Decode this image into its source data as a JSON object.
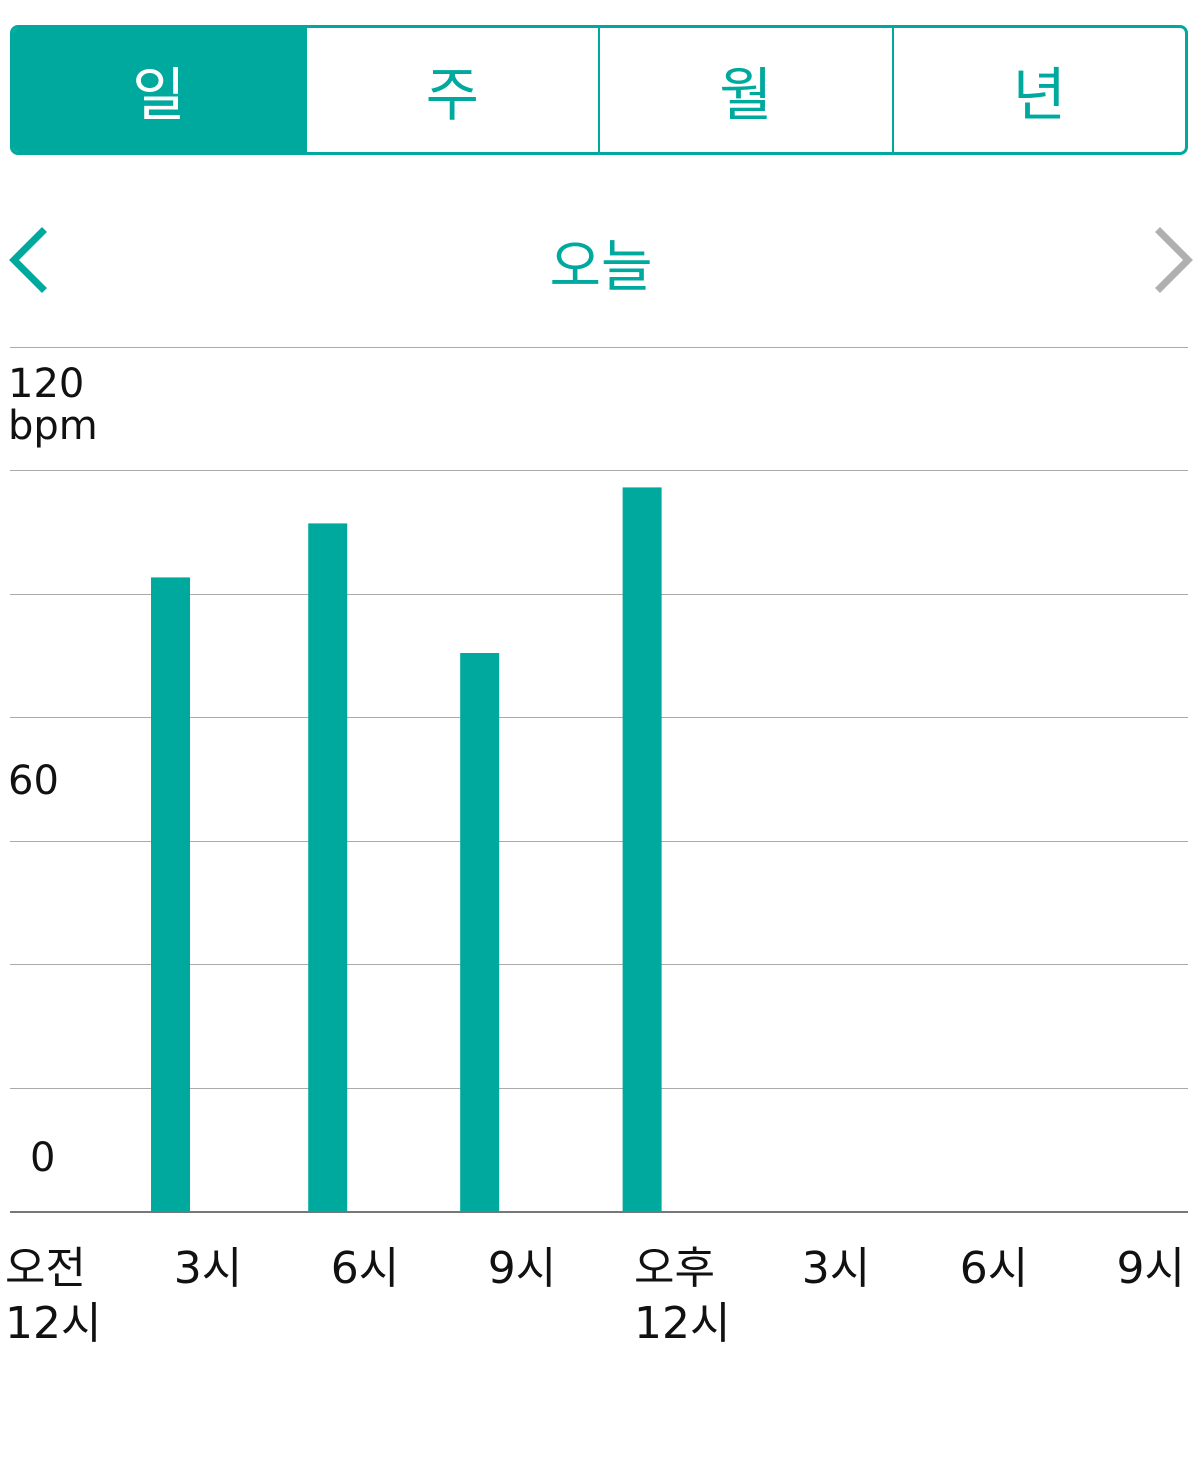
{
  "tabs": [
    {
      "label": "일",
      "active": true
    },
    {
      "label": "주",
      "active": false
    },
    {
      "label": "월",
      "active": false
    },
    {
      "label": "년",
      "active": false
    }
  ],
  "nav": {
    "title": "오늘",
    "prev_icon": "chevron-left-icon",
    "next_icon": "chevron-right-icon",
    "prev_enabled": true,
    "next_enabled": false
  },
  "colors": {
    "accent": "#00a99d",
    "grid": "#aaaaaa",
    "axis": "#777777",
    "disabled": "#b0b0b0"
  },
  "chart_data": {
    "type": "bar",
    "unit_label": "bpm",
    "ylim": [
      0,
      120
    ],
    "y_ticks": [
      "120",
      "60",
      "0"
    ],
    "grid_values": [
      0,
      17.14,
      34.29,
      51.43,
      68.57,
      85.71,
      102.86,
      120
    ],
    "categories": [
      "오전 12시",
      "3시",
      "6시",
      "9시",
      "오후 12시",
      "3시",
      "6시",
      "9시"
    ],
    "x_tick_labels": [
      [
        "오전",
        "12시"
      ],
      [
        "3시"
      ],
      [
        "6시"
      ],
      [
        "9시"
      ],
      [
        "오후",
        "12시"
      ],
      [
        "3시"
      ],
      [
        "6시"
      ],
      [
        "9시"
      ]
    ],
    "bars": [
      {
        "hour": 2.3,
        "value": 88
      },
      {
        "hour": 5.3,
        "value": 95.5
      },
      {
        "hour": 8.2,
        "value": 77.5
      },
      {
        "hour": 11.3,
        "value": 100.5
      }
    ],
    "x_range_hours": [
      0,
      21
    ]
  }
}
